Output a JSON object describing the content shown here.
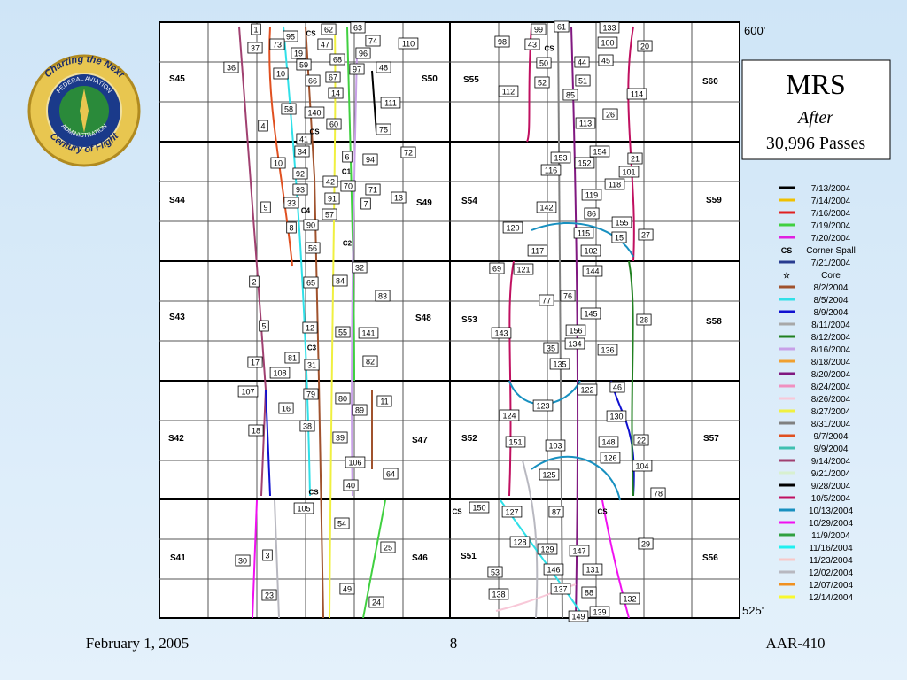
{
  "logo": {
    "top": "Charting the Next",
    "bottom": "Century of Flight",
    "ring_top": "FEDERAL AVIATION",
    "ring_bottom": "ADMINISTRATION"
  },
  "title_box": {
    "title": "MRS",
    "line1": "After",
    "line2": "30,996 Passes"
  },
  "depth_top": "600'",
  "depth_bottom": "525'",
  "slabs": [
    "S45",
    "S50",
    "S55",
    "S60",
    "S44",
    "S49",
    "S54",
    "S59",
    "S43",
    "S48",
    "S53",
    "S58",
    "S42",
    "S47",
    "S52",
    "S57",
    "S41",
    "S46",
    "S51",
    "S56"
  ],
  "labels": [
    "1",
    "95",
    "62",
    "63",
    "CS",
    "73",
    "47",
    "74",
    "110",
    "37",
    "19",
    "68",
    "96",
    "36",
    "59",
    "97",
    "48",
    "10",
    "66",
    "67",
    "14",
    "111",
    "58",
    "140",
    "60",
    "4",
    "75",
    "CS",
    "41",
    "6",
    "94",
    "72",
    "34",
    "10",
    "C1",
    "92",
    "42",
    "70",
    "71",
    "13",
    "93",
    "91",
    "7",
    "9",
    "33",
    "C4",
    "57",
    "90",
    "8",
    "C2",
    "56",
    "32",
    "2",
    "65",
    "84",
    "83",
    "5",
    "12",
    "55",
    "141",
    "C3",
    "81",
    "82",
    "17",
    "31",
    "108",
    "107",
    "79",
    "80",
    "11",
    "16",
    "89",
    "38",
    "18",
    "39",
    "106",
    "64",
    "40",
    "CS",
    "105",
    "54",
    "25",
    "3",
    "30",
    "49",
    "23",
    "24",
    "99",
    "61",
    "133",
    "98",
    "43",
    "100",
    "20",
    "CS",
    "50",
    "44",
    "45",
    "52",
    "51",
    "112",
    "85",
    "114",
    "26",
    "113",
    "153",
    "154",
    "21",
    "116",
    "152",
    "101",
    "118",
    "119",
    "142",
    "86",
    "155",
    "120",
    "115",
    "15",
    "27",
    "117",
    "102",
    "69",
    "121",
    "144",
    "76",
    "77",
    "145",
    "28",
    "156",
    "143",
    "134",
    "35",
    "136",
    "135",
    "122",
    "46",
    "123",
    "124",
    "130",
    "151",
    "103",
    "148",
    "22",
    "126",
    "104",
    "125",
    "78",
    "CS",
    "150",
    "127",
    "87",
    "CS",
    "128",
    "129",
    "147",
    "29",
    "53",
    "146",
    "131",
    "137",
    "88",
    "138",
    "132",
    "149",
    "139"
  ],
  "legend": [
    {
      "label": "7/13/2004",
      "color": "#000000"
    },
    {
      "label": "7/14/2004",
      "color": "#f0c000"
    },
    {
      "label": "7/16/2004",
      "color": "#e02020"
    },
    {
      "label": "7/19/2004",
      "color": "#40d040"
    },
    {
      "label": "7/20/2004",
      "color": "#e020e0"
    },
    {
      "symbol": "CS",
      "label": "Corner Spall"
    },
    {
      "label": "7/21/2004",
      "color": "#283c90"
    },
    {
      "symbol": "☆",
      "label": "Core"
    },
    {
      "label": "8/2/2004",
      "color": "#a0522d"
    },
    {
      "label": "8/5/2004",
      "color": "#30e0e8"
    },
    {
      "label": "8/9/2004",
      "color": "#1010d0"
    },
    {
      "label": "8/11/2004",
      "color": "#a8a8a8"
    },
    {
      "label": "8/12/2004",
      "color": "#208020"
    },
    {
      "label": "8/16/2004",
      "color": "#c8a0e8"
    },
    {
      "label": "8/18/2004",
      "color": "#f0a030"
    },
    {
      "label": "8/20/2004",
      "color": "#801880"
    },
    {
      "label": "8/24/2004",
      "color": "#f090c0"
    },
    {
      "label": "8/26/2004",
      "color": "#f8c8d8"
    },
    {
      "label": "8/27/2004",
      "color": "#f0f040"
    },
    {
      "label": "8/31/2004",
      "color": "#808080"
    },
    {
      "label": "9/7/2004",
      "color": "#e05020"
    },
    {
      "label": "9/9/2004",
      "color": "#40c0b0"
    },
    {
      "label": "9/14/2004",
      "color": "#a04070"
    },
    {
      "label": "9/21/2004",
      "color": "#d8f0d0"
    },
    {
      "label": "9/28/2004",
      "color": "#000000"
    },
    {
      "label": "10/5/2004",
      "color": "#c01060"
    },
    {
      "label": "10/13/2004",
      "color": "#1890c0"
    },
    {
      "label": "10/29/2004",
      "color": "#f010f0"
    },
    {
      "label": "11/9/2004",
      "color": "#30a040"
    },
    {
      "label": "11/16/2004",
      "color": "#20f0f0"
    },
    {
      "label": "11/23/2004",
      "color": "#f8c8c8"
    },
    {
      "label": "12/02/2004",
      "color": "#b8b8c0"
    },
    {
      "label": "12/07/2004",
      "color": "#f09020"
    },
    {
      "label": "12/14/2004",
      "color": "#f8f830"
    }
  ],
  "footer": {
    "date": "February 1, 2005",
    "page": "8",
    "code": "AAR-410"
  }
}
